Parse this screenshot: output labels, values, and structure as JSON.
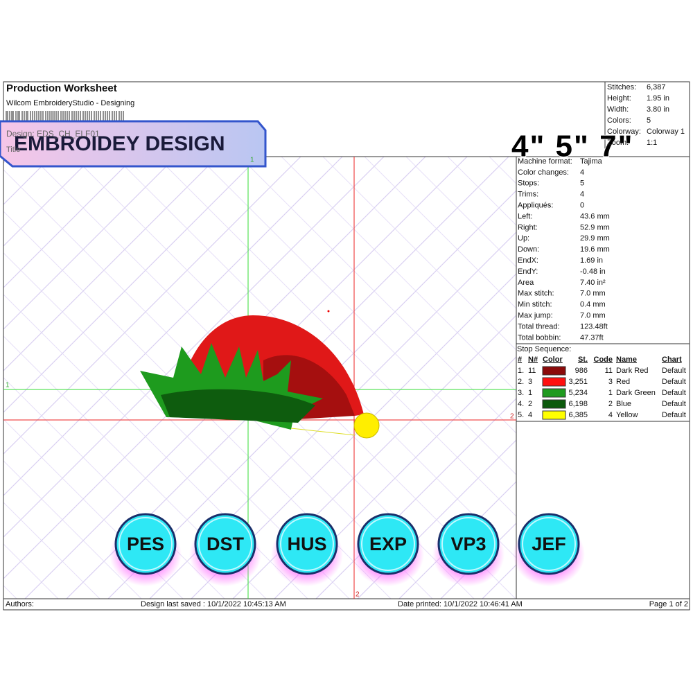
{
  "header": {
    "title": "Production Worksheet",
    "subtitle": "Wilcom EmbroideryStudio - Designing",
    "design": "Design:  EDS_CH_ELF01",
    "title_label": "Title"
  },
  "banner": {
    "text": "EMBROIDEY DESIGN",
    "sizes": "4\" 5\" 7\""
  },
  "summary": [
    [
      "Stitches:",
      "6,387"
    ],
    [
      "Height:",
      "1.95 in"
    ],
    [
      "Width:",
      "3.80 in"
    ],
    [
      "Colors:",
      "5"
    ],
    [
      "Colorway:",
      "Colorway 1"
    ],
    [
      "Zoom:",
      "1:1"
    ]
  ],
  "machine": [
    [
      "Machine format:",
      "Tajima"
    ],
    [
      "Color changes:",
      "4"
    ],
    [
      "Stops:",
      "5"
    ],
    [
      "Trims:",
      "4"
    ],
    [
      "Appliqués:",
      "0"
    ],
    [
      "Left:",
      "43.6 mm"
    ],
    [
      "Right:",
      "52.9 mm"
    ],
    [
      "Up:",
      "29.9 mm"
    ],
    [
      "Down:",
      "19.6 mm"
    ],
    [
      "EndX:",
      "1.69 in"
    ],
    [
      "EndY:",
      "-0.48 in"
    ],
    [
      "Area",
      "7.40 in²"
    ],
    [
      "Max stitch:",
      "7.0 mm"
    ],
    [
      "Min stitch:",
      "0.4 mm"
    ],
    [
      "Max jump:",
      "7.0 mm"
    ],
    [
      "Total thread:",
      "123.48ft"
    ],
    [
      "Total bobbin:",
      "47.37ft"
    ]
  ],
  "stop_sequence": {
    "title": "Stop Sequence:",
    "headers": [
      "#",
      "N#",
      "Color",
      "St.",
      "Code",
      "Name",
      "Chart"
    ],
    "rows": [
      {
        "index": "1.",
        "n": "11",
        "stitches": "986",
        "code": "11",
        "name": "Dark Red",
        "chart": "Default",
        "color": "#8b0a0a"
      },
      {
        "index": "2.",
        "n": "3",
        "stitches": "3,251",
        "code": "3",
        "name": "Red",
        "chart": "Default",
        "color": "#ff1010"
      },
      {
        "index": "3.",
        "n": "1",
        "stitches": "5,234",
        "code": "1",
        "name": "Dark Green",
        "chart": "Default",
        "color": "#1f9a1f"
      },
      {
        "index": "4.",
        "n": "2",
        "stitches": "6,198",
        "code": "2",
        "name": "Blue",
        "chart": "Default",
        "color": "#0c5a0c"
      },
      {
        "index": "5.",
        "n": "4",
        "stitches": "6,385",
        "code": "4",
        "name": "Yellow",
        "chart": "Default",
        "color": "#ffff00"
      }
    ]
  },
  "axis_markers": {
    "h1": "1",
    "v1": "1",
    "h2": "2",
    "v2": "2"
  },
  "formats": [
    "PES",
    "DST",
    "HUS",
    "EXP",
    "VP3",
    "JEF"
  ],
  "footer": {
    "authors": "Authors:",
    "saved": "Design last saved : 10/1/2022 10:45:13 AM",
    "printed": "Date printed: 10/1/2022 10:46:41 AM",
    "page": "Page 1 of 2"
  }
}
